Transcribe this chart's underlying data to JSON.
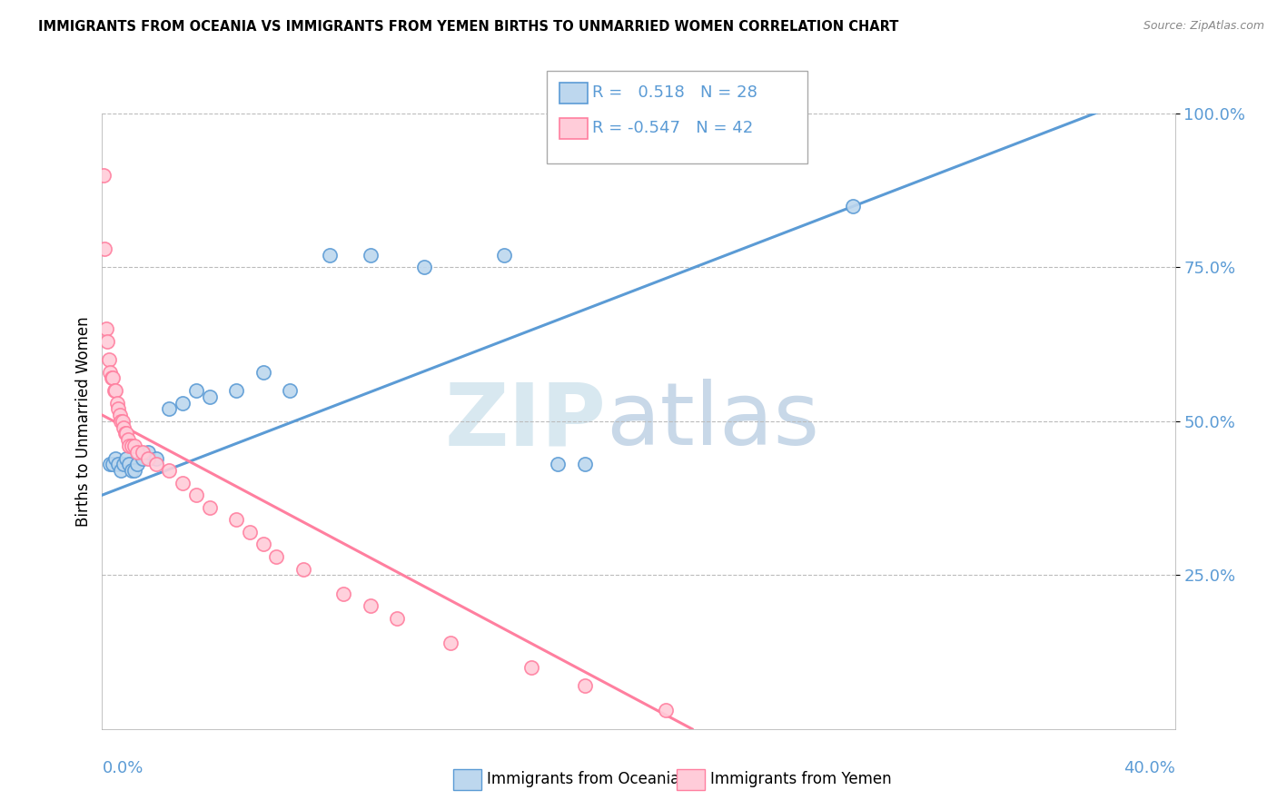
{
  "title": "IMMIGRANTS FROM OCEANIA VS IMMIGRANTS FROM YEMEN BIRTHS TO UNMARRIED WOMEN CORRELATION CHART",
  "source": "Source: ZipAtlas.com",
  "xmin": 0.0,
  "xmax": 40.0,
  "ymin": 0.0,
  "ymax": 100.0,
  "ylabel_label": "Births to Unmarried Women",
  "legend_label1": "Immigrants from Oceania",
  "legend_label2": "Immigrants from Yemen",
  "R1": 0.518,
  "N1": 28,
  "R2": -0.547,
  "N2": 42,
  "blue_color": "#5B9BD5",
  "blue_light": "#BDD7EE",
  "pink_color": "#FF7F9F",
  "pink_light": "#FFCCD9",
  "ytick_vals": [
    25,
    50,
    75,
    100
  ],
  "grid_color": "#BBBBBB",
  "background_color": "#FFFFFF",
  "blue_scatter": [
    [
      0.3,
      43
    ],
    [
      0.4,
      43
    ],
    [
      0.5,
      44
    ],
    [
      0.6,
      43
    ],
    [
      0.7,
      42
    ],
    [
      0.8,
      43
    ],
    [
      0.9,
      44
    ],
    [
      1.0,
      43
    ],
    [
      1.1,
      42
    ],
    [
      1.2,
      42
    ],
    [
      1.3,
      43
    ],
    [
      1.5,
      44
    ],
    [
      1.7,
      45
    ],
    [
      2.0,
      44
    ],
    [
      2.5,
      52
    ],
    [
      3.0,
      53
    ],
    [
      3.5,
      55
    ],
    [
      4.0,
      54
    ],
    [
      5.0,
      55
    ],
    [
      6.0,
      58
    ],
    [
      7.0,
      55
    ],
    [
      8.5,
      77
    ],
    [
      10.0,
      77
    ],
    [
      12.0,
      75
    ],
    [
      15.0,
      77
    ],
    [
      17.0,
      43
    ],
    [
      18.0,
      43
    ],
    [
      28.0,
      85
    ]
  ],
  "pink_scatter": [
    [
      0.05,
      90
    ],
    [
      0.1,
      78
    ],
    [
      0.15,
      65
    ],
    [
      0.2,
      63
    ],
    [
      0.25,
      60
    ],
    [
      0.3,
      58
    ],
    [
      0.35,
      57
    ],
    [
      0.4,
      57
    ],
    [
      0.45,
      55
    ],
    [
      0.5,
      55
    ],
    [
      0.55,
      53
    ],
    [
      0.6,
      52
    ],
    [
      0.65,
      51
    ],
    [
      0.7,
      50
    ],
    [
      0.75,
      50
    ],
    [
      0.8,
      49
    ],
    [
      0.85,
      48
    ],
    [
      0.9,
      48
    ],
    [
      0.95,
      47
    ],
    [
      1.0,
      46
    ],
    [
      1.1,
      46
    ],
    [
      1.2,
      46
    ],
    [
      1.3,
      45
    ],
    [
      1.5,
      45
    ],
    [
      1.7,
      44
    ],
    [
      2.0,
      43
    ],
    [
      2.5,
      42
    ],
    [
      3.0,
      40
    ],
    [
      3.5,
      38
    ],
    [
      4.0,
      36
    ],
    [
      5.0,
      34
    ],
    [
      5.5,
      32
    ],
    [
      6.0,
      30
    ],
    [
      6.5,
      28
    ],
    [
      7.5,
      26
    ],
    [
      9.0,
      22
    ],
    [
      10.0,
      20
    ],
    [
      11.0,
      18
    ],
    [
      13.0,
      14
    ],
    [
      16.0,
      10
    ],
    [
      18.0,
      7
    ],
    [
      21.0,
      3
    ]
  ],
  "blue_line_x": [
    0.0,
    40.0
  ],
  "blue_line_y": [
    38.0,
    105.0
  ],
  "pink_line_x": [
    0.0,
    22.0
  ],
  "pink_line_y": [
    51.0,
    0.0
  ]
}
